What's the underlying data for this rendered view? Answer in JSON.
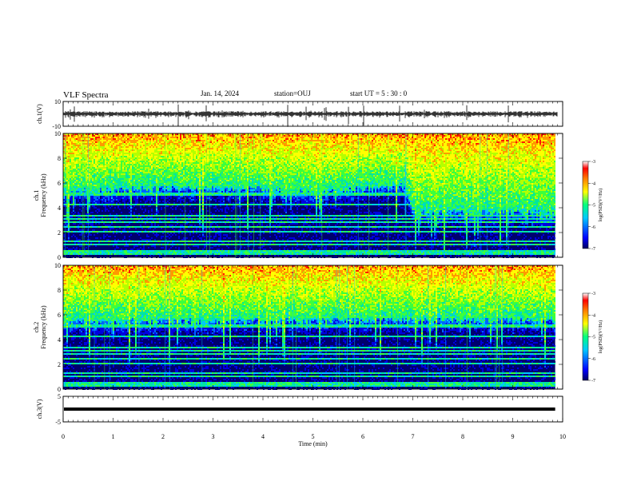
{
  "header": {
    "title": "VLF Spectra",
    "date": "Jan. 14, 2024",
    "station": "station=OUJ",
    "start": "start UT =  5 : 30 : 0"
  },
  "chart_data": [
    {
      "type": "line",
      "name": "ch1-waveform",
      "ylabel": "ch.1(V)",
      "ylim": [
        -10,
        10
      ],
      "y_ticks": [
        "10",
        "-10"
      ],
      "xlim": [
        0,
        10
      ],
      "level": 0,
      "color": "#000000"
    },
    {
      "type": "heatmap",
      "name": "ch1-spectrogram",
      "ylabel_line1": "ch.1",
      "ylabel_line2": "Frequency (kHz)",
      "ylim": [
        0,
        10
      ],
      "y_ticks": [
        "0",
        "2",
        "4",
        "6",
        "8",
        "10"
      ],
      "xlim": [
        0,
        10
      ],
      "data_end_min": 9.85,
      "floor_khz_by_minute": [
        [
          0,
          5.2
        ],
        [
          2,
          5.6
        ],
        [
          4,
          5.5
        ],
        [
          5,
          5.2
        ],
        [
          6.8,
          5.8
        ],
        [
          7,
          3.6
        ],
        [
          9.85,
          3.5
        ]
      ],
      "events": [
        {
          "t": 6.85,
          "desc": "dark band boundary"
        }
      ]
    },
    {
      "type": "heatmap",
      "name": "ch2-spectrogram",
      "ylabel_line1": "ch.2",
      "ylabel_line2": "Frequency (kHz)",
      "ylim": [
        0,
        10
      ],
      "y_ticks": [
        "0",
        "2",
        "4",
        "6",
        "8",
        "10"
      ],
      "xlim": [
        0,
        10
      ],
      "data_end_min": 9.85,
      "floor_khz_by_minute": [
        [
          0,
          5.4
        ],
        [
          5,
          5.5
        ],
        [
          9.85,
          5.6
        ]
      ]
    },
    {
      "type": "line",
      "name": "ch3-waveform",
      "ylabel": "ch.3(V)",
      "ylim": [
        -5,
        5
      ],
      "y_ticks": [
        "5",
        "-5"
      ],
      "xlim": [
        0,
        10
      ],
      "level": 0,
      "color": "#000000"
    }
  ],
  "x_axis": {
    "label": "Time (min)",
    "ticks": [
      "0",
      "1",
      "2",
      "3",
      "4",
      "5",
      "6",
      "7",
      "8",
      "9",
      "10"
    ]
  },
  "colorbar": {
    "label": "log(PSD)(V²/Hz)",
    "ticks": [
      "-3",
      "-4",
      "-5",
      "-6",
      "-7"
    ],
    "range": [
      -7,
      -3
    ],
    "colors": [
      "#000060",
      "#0000ff",
      "#00c8ff",
      "#00ff80",
      "#ffff00",
      "#ff8000",
      "#ff0000",
      "#ffffff"
    ]
  }
}
